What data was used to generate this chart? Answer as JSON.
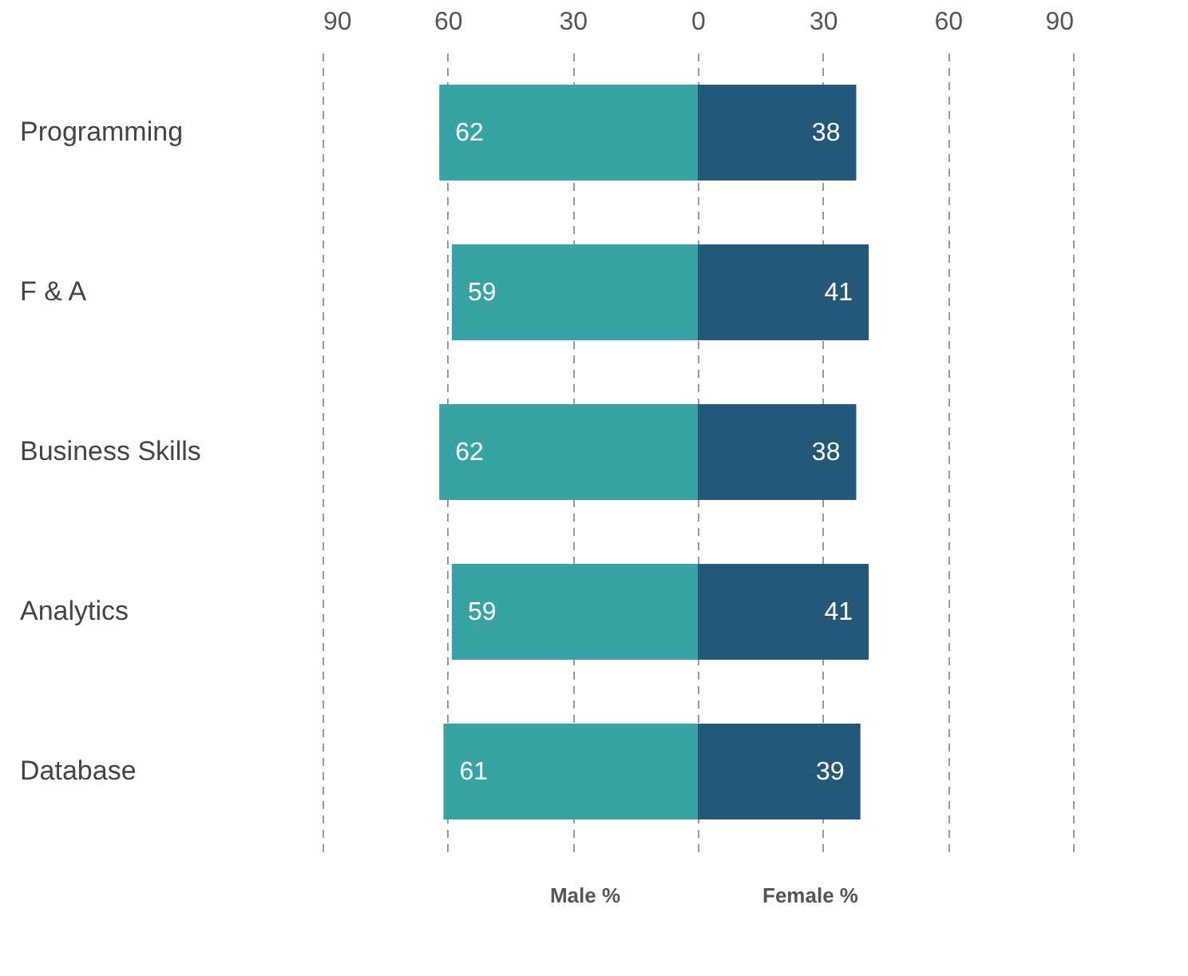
{
  "chart_data": {
    "type": "bar",
    "orientation": "horizontal",
    "data_labels": true,
    "categories": [
      "Programming",
      "F & A",
      "Business Skills",
      "Analytics",
      "Database"
    ],
    "series": [
      {
        "color": "#38a3a5",
        "values": [
          62,
          59,
          62,
          59,
          61
        ],
        "base": [
          -62,
          -59,
          -62,
          -59,
          -61
        ]
      },
      {
        "color": "#235878",
        "values": [
          38,
          41,
          38,
          41,
          39
        ]
      }
    ],
    "xlim": [
      -90,
      90
    ],
    "xticks": [
      {
        "value": -90,
        "label": "90"
      },
      {
        "value": -60,
        "label": "60"
      },
      {
        "value": -30,
        "label": "30"
      },
      0,
      30,
      60,
      90
    ],
    "grid": "x",
    "annotations": [
      "Male %",
      "Female %"
    ]
  }
}
